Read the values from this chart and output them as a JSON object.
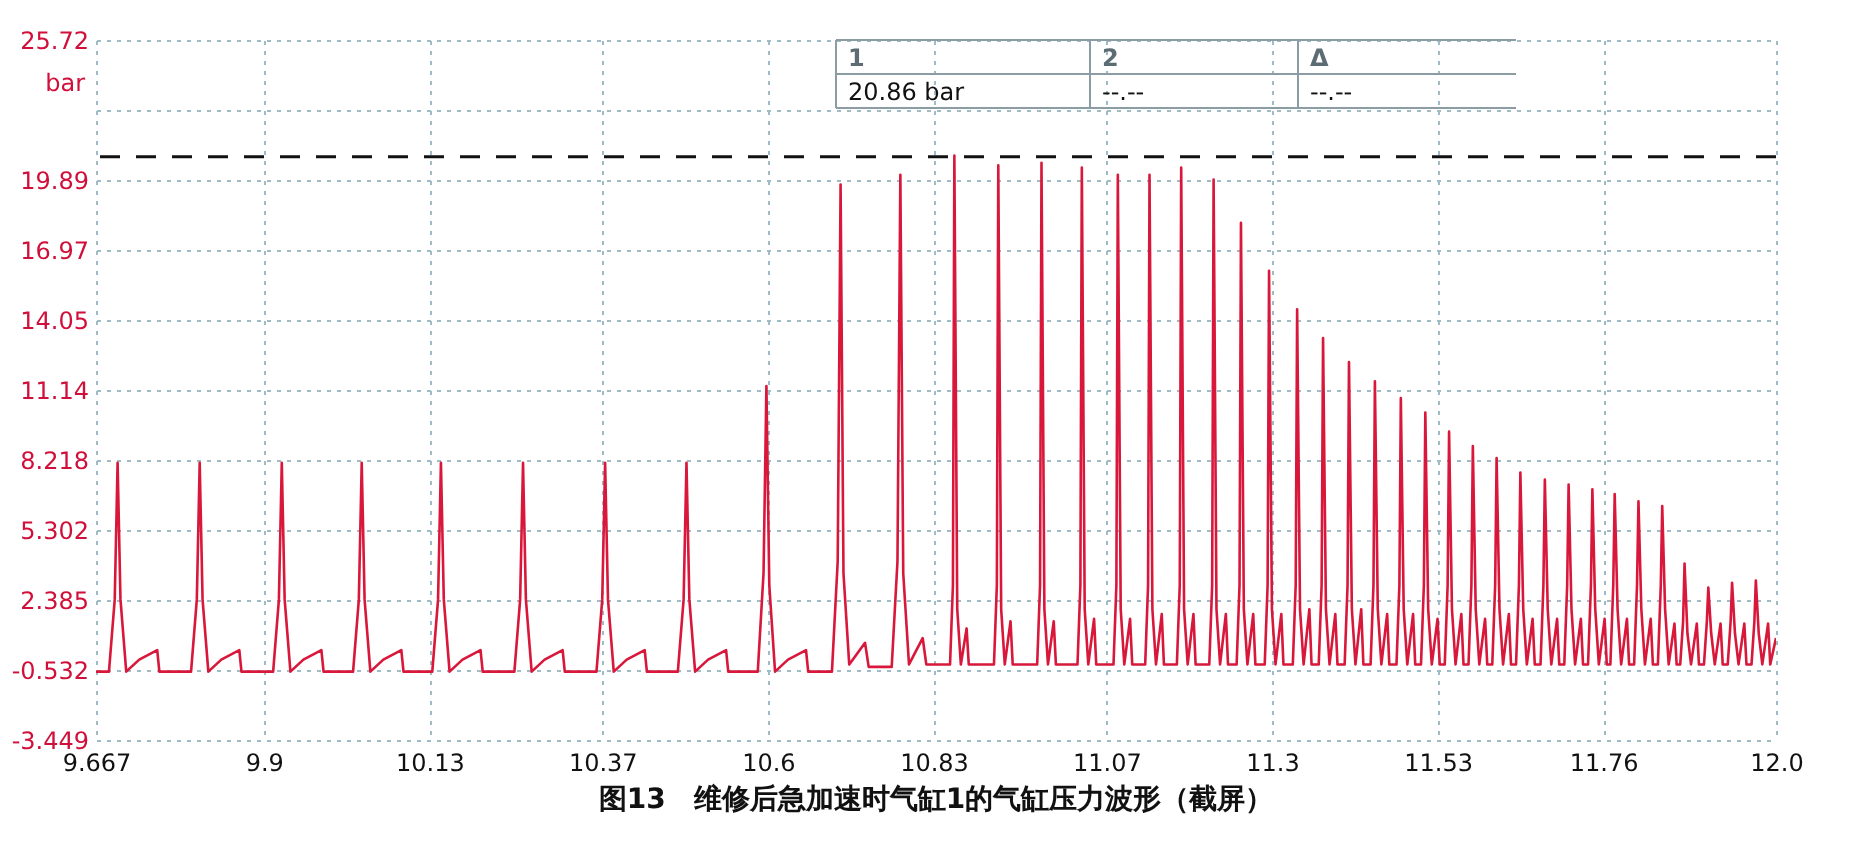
{
  "chart_data": {
    "type": "line",
    "title": "图13　维修后急加速时气缸1的气缸压力波形（截屏）",
    "ylabel": "bar",
    "xlim": [
      9.667,
      12.0
    ],
    "xticks": [
      9.667,
      9.9,
      10.13,
      10.37,
      10.6,
      10.83,
      11.07,
      11.3,
      11.53,
      11.76,
      {
        "value": 12.0,
        "label": "12.0"
      }
    ],
    "ylim": [
      -3.449,
      25.72
    ],
    "yticks": [
      -3.449,
      -0.532,
      2.385,
      5.302,
      8.218,
      11.14,
      14.05,
      16.97,
      19.89,
      {
        "value": 22.8,
        "label": null
      },
      25.72
    ],
    "grid": true,
    "line_style": "solid",
    "ref_lines": [
      {
        "axis": "y",
        "value": 20.86,
        "label": "20.86 bar",
        "color": "#111111",
        "line_style": "dashed"
      }
    ],
    "annotations": [
      "1",
      "2",
      "Δ",
      "--.--",
      "--.--"
    ],
    "series": [
      {
        "color": "#d8173a",
        "x": [
          9.667,
          9.685,
          9.693,
          9.697,
          9.701,
          9.709,
          9.727,
          9.752,
          9.755,
          9.799,
          9.807,
          9.811,
          9.815,
          9.823,
          9.841,
          9.866,
          9.869,
          9.913,
          9.921,
          9.925,
          9.929,
          9.937,
          9.955,
          9.98,
          9.983,
          10.024,
          10.032,
          10.036,
          10.04,
          10.048,
          10.066,
          10.091,
          10.094,
          10.134,
          10.142,
          10.146,
          10.15,
          10.158,
          10.176,
          10.201,
          10.204,
          10.248,
          10.256,
          10.26,
          10.264,
          10.272,
          10.29,
          10.315,
          10.318,
          10.362,
          10.37,
          10.374,
          10.378,
          10.386,
          10.404,
          10.429,
          10.432,
          10.475,
          10.483,
          10.487,
          10.491,
          10.499,
          10.517,
          10.542,
          10.545,
          10.586,
          10.594,
          10.598,
          10.602,
          10.61,
          10.628,
          10.653,
          10.656,
          10.689,
          10.697,
          10.701,
          10.705,
          10.713,
          10.735,
          10.74,
          10.772,
          10.78,
          10.784,
          10.788,
          10.796,
          10.815,
          10.82,
          10.853,
          10.857,
          10.859,
          10.863,
          10.868,
          10.876,
          10.879,
          10.914,
          10.918,
          10.92,
          10.924,
          10.929,
          10.937,
          10.94,
          10.974,
          10.978,
          10.98,
          10.984,
          10.989,
          10.997,
          11.0,
          11.03,
          11.034,
          11.036,
          11.04,
          11.045,
          11.053,
          11.056,
          11.08,
          11.084,
          11.086,
          11.09,
          11.095,
          11.103,
          11.106,
          11.124,
          11.128,
          11.13,
          11.134,
          11.139,
          11.147,
          11.15,
          11.168,
          11.172,
          11.174,
          11.178,
          11.183,
          11.191,
          11.194,
          11.213,
          11.217,
          11.219,
          11.223,
          11.228,
          11.236,
          11.239,
          11.251,
          11.255,
          11.257,
          11.261,
          11.266,
          11.274,
          11.277,
          11.29,
          11.294,
          11.296,
          11.3,
          11.305,
          11.313,
          11.316,
          11.329,
          11.333,
          11.335,
          11.339,
          11.344,
          11.352,
          11.355,
          11.365,
          11.369,
          11.371,
          11.375,
          11.38,
          11.388,
          11.391,
          11.401,
          11.405,
          11.407,
          11.411,
          11.416,
          11.424,
          11.427,
          11.437,
          11.441,
          11.443,
          11.447,
          11.452,
          11.46,
          11.463,
          11.473,
          11.477,
          11.479,
          11.483,
          11.488,
          11.496,
          11.499,
          11.507,
          11.511,
          11.513,
          11.517,
          11.522,
          11.53,
          11.533,
          11.54,
          11.544,
          11.546,
          11.55,
          11.555,
          11.563,
          11.566,
          11.573,
          11.577,
          11.579,
          11.583,
          11.588,
          11.596,
          11.599,
          11.606,
          11.61,
          11.612,
          11.616,
          11.621,
          11.629,
          11.632,
          11.639,
          11.643,
          11.645,
          11.649,
          11.654,
          11.662,
          11.665,
          11.673,
          11.677,
          11.679,
          11.683,
          11.688,
          11.696,
          11.699,
          11.706,
          11.71,
          11.712,
          11.716,
          11.721,
          11.729,
          11.732,
          11.739,
          11.743,
          11.745,
          11.749,
          11.754,
          11.762,
          11.765,
          11.77,
          11.774,
          11.776,
          11.78,
          11.785,
          11.793,
          11.796,
          11.803,
          11.807,
          11.809,
          11.813,
          11.818,
          11.826,
          11.829,
          11.836,
          11.84,
          11.842,
          11.846,
          11.851,
          11.859,
          11.862,
          11.867,
          11.871,
          11.873,
          11.877,
          11.882,
          11.89,
          11.893,
          11.9,
          11.904,
          11.906,
          11.91,
          11.915,
          11.923,
          11.926,
          11.933,
          11.937,
          11.939,
          11.943,
          11.948,
          11.956,
          11.959,
          11.966,
          11.97,
          11.972,
          11.976,
          11.981,
          11.989,
          11.992,
          12.0
        ],
        "values": [
          -0.6,
          -0.6,
          2.4,
          8.1,
          2.4,
          -0.6,
          -0.1,
          0.3,
          -0.6,
          -0.6,
          2.4,
          8.1,
          2.4,
          -0.6,
          -0.1,
          0.3,
          -0.6,
          -0.6,
          2.4,
          8.1,
          2.4,
          -0.6,
          -0.1,
          0.3,
          -0.6,
          -0.6,
          2.4,
          8.1,
          2.4,
          -0.6,
          -0.1,
          0.3,
          -0.6,
          -0.6,
          2.4,
          8.1,
          2.4,
          -0.6,
          -0.1,
          0.3,
          -0.6,
          -0.6,
          2.4,
          8.1,
          2.4,
          -0.6,
          -0.1,
          0.3,
          -0.6,
          -0.6,
          2.4,
          8.1,
          2.4,
          -0.6,
          -0.1,
          0.3,
          -0.6,
          -0.6,
          2.4,
          8.1,
          2.4,
          -0.6,
          -0.1,
          0.3,
          -0.6,
          -0.6,
          3.5,
          11.3,
          3.0,
          -0.6,
          -0.1,
          0.3,
          -0.6,
          -0.6,
          4.0,
          19.7,
          3.5,
          -0.3,
          0.6,
          -0.4,
          -0.4,
          4.0,
          20.1,
          3.5,
          -0.3,
          0.8,
          -0.3,
          -0.3,
          3.0,
          20.9,
          2.0,
          -0.3,
          1.2,
          -0.3,
          -0.3,
          3.0,
          20.5,
          2.0,
          -0.3,
          1.5,
          -0.3,
          -0.3,
          3.0,
          20.6,
          2.0,
          -0.3,
          1.5,
          -0.3,
          -0.3,
          3.0,
          20.4,
          2.0,
          -0.3,
          1.6,
          -0.3,
          -0.3,
          3.0,
          20.1,
          2.0,
          -0.3,
          1.6,
          -0.3,
          -0.3,
          3.0,
          20.1,
          2.0,
          -0.3,
          1.8,
          -0.3,
          -0.3,
          3.0,
          20.4,
          2.0,
          -0.3,
          1.8,
          -0.3,
          -0.3,
          3.0,
          19.9,
          2.0,
          -0.3,
          1.8,
          -0.3,
          -0.3,
          3.0,
          18.1,
          2.0,
          -0.3,
          1.8,
          -0.3,
          -0.3,
          3.0,
          16.1,
          2.0,
          -0.3,
          1.8,
          -0.3,
          -0.3,
          3.0,
          14.5,
          2.0,
          -0.3,
          2.0,
          -0.3,
          -0.3,
          3.0,
          13.3,
          2.0,
          -0.3,
          1.8,
          -0.3,
          -0.3,
          3.0,
          12.3,
          2.0,
          -0.3,
          2.0,
          -0.3,
          -0.3,
          3.0,
          11.5,
          2.0,
          -0.3,
          1.8,
          -0.3,
          -0.3,
          3.0,
          10.8,
          2.0,
          -0.3,
          1.8,
          -0.3,
          -0.3,
          3.0,
          10.2,
          2.0,
          -0.3,
          1.6,
          -0.3,
          -0.3,
          3.0,
          9.4,
          2.0,
          -0.3,
          1.8,
          -0.3,
          -0.3,
          3.0,
          8.8,
          2.0,
          -0.3,
          1.6,
          -0.3,
          -0.3,
          3.0,
          8.3,
          2.0,
          -0.3,
          1.8,
          -0.3,
          -0.3,
          3.0,
          7.7,
          2.0,
          -0.3,
          1.6,
          -0.3,
          -0.3,
          3.0,
          7.4,
          2.0,
          -0.3,
          1.6,
          -0.3,
          -0.3,
          3.0,
          7.2,
          2.0,
          -0.3,
          1.6,
          -0.3,
          -0.3,
          3.0,
          7.0,
          2.0,
          -0.3,
          1.6,
          -0.3,
          -0.3,
          3.0,
          6.8,
          2.0,
          -0.3,
          1.6,
          -0.3,
          -0.3,
          3.0,
          6.5,
          2.0,
          -0.3,
          1.6,
          -0.3,
          -0.3,
          3.0,
          6.3,
          2.0,
          -0.3,
          1.4,
          -0.3,
          -0.3,
          1.5,
          3.9,
          1.0,
          -0.3,
          1.4,
          -0.3,
          -0.3,
          1.5,
          2.9,
          1.0,
          -0.3,
          1.4,
          -0.3,
          -0.3,
          1.5,
          3.1,
          1.0,
          -0.3,
          1.4,
          -0.3,
          -0.3,
          1.5,
          3.2,
          1.0,
          -0.3,
          1.4,
          -0.3,
          0.8
        ]
      }
    ]
  }
}
